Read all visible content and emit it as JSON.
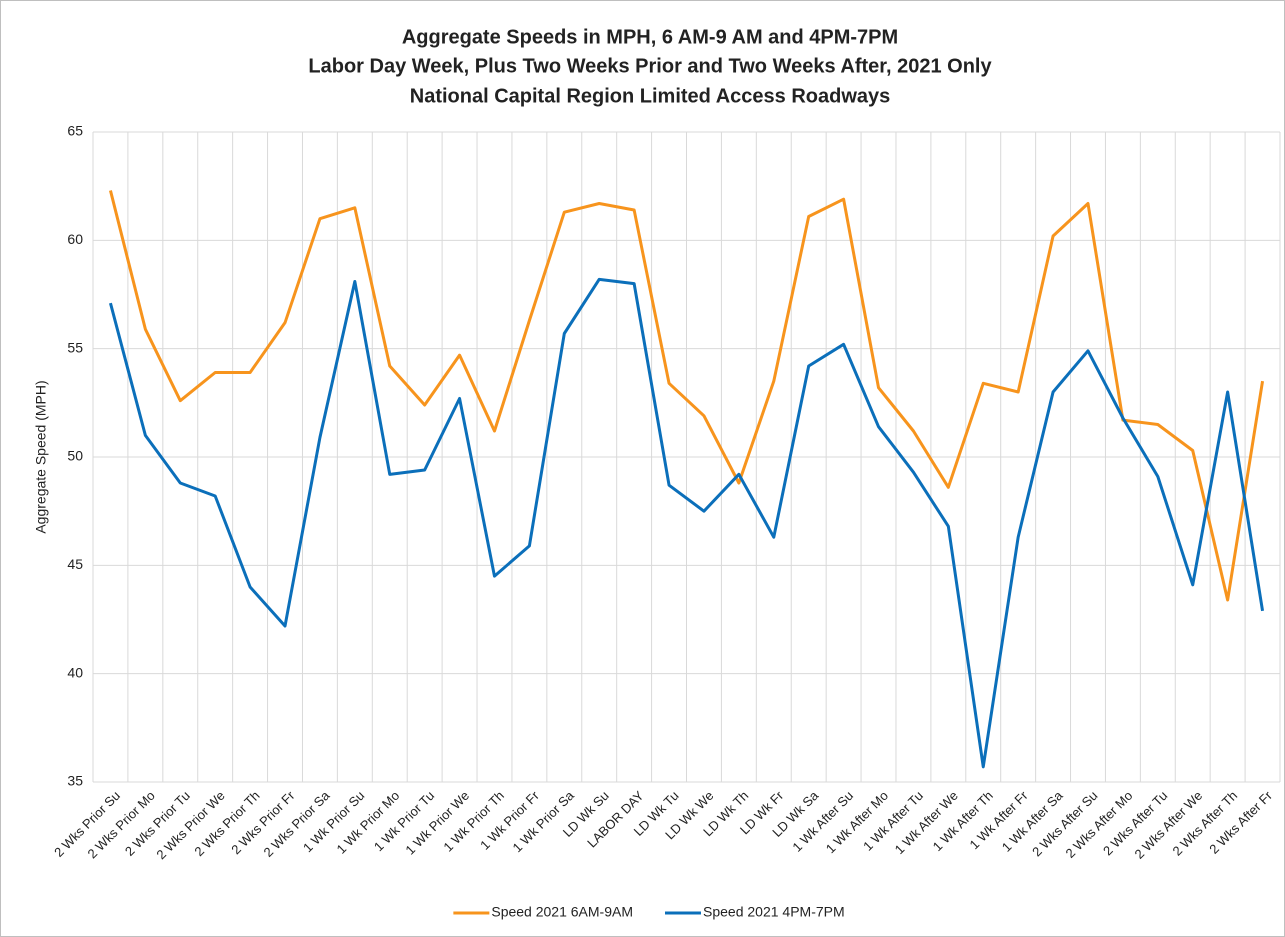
{
  "chart_data": {
    "type": "line",
    "title": [
      "Aggregate Speeds in MPH, 6 AM-9 AM and 4PM-7PM",
      "Labor Day Week, Plus Two Weeks Prior and Two Weeks After, 2021 Only",
      "National Capital Region Limited Access Roadways"
    ],
    "y_label": "Aggregate Speed (MPH)",
    "categories": [
      "2 Wks Prior Su",
      "2 Wks Prior Mo",
      "2 Wks Prior Tu",
      "2 Wks Prior We",
      "2 Wks Prior Th",
      "2 Wks Prior Fr",
      "2 Wks Prior Sa",
      "1 Wk Prior Su",
      "1 Wk Prior Mo",
      "1 Wk Prior Tu",
      "1 Wk Prior We",
      "1 Wk Prior Th",
      "1 Wk Prior Fr",
      "1 Wk Prior Sa",
      "LD Wk Su",
      "LABOR DAY",
      "LD Wk Tu",
      "LD Wk We",
      "LD Wk Th",
      "LD Wk Fr",
      "LD Wk Sa",
      "1 Wk After Su",
      "1 Wk After Mo",
      "1 Wk After Tu",
      "1 Wk After We",
      "1 Wk After Th",
      "1 Wk After Fr",
      "1 Wk After Sa",
      "2 Wks After Su",
      "2 Wks After Mo",
      "2 Wks After Tu",
      "2 Wks After We",
      "2 Wks After Th",
      "2 Wks After Fr"
    ],
    "series": [
      {
        "name": "Speed 2021 6AM-9AM",
        "color": "#f7941d",
        "values": [
          62.3,
          55.9,
          52.6,
          53.9,
          53.9,
          56.2,
          61.0,
          61.5,
          54.2,
          52.4,
          54.7,
          51.2,
          56.3,
          61.3,
          61.7,
          61.4,
          53.4,
          51.9,
          48.8,
          53.5,
          61.1,
          61.9,
          53.2,
          51.2,
          48.6,
          53.4,
          53.0,
          60.2,
          61.7,
          51.7,
          51.5,
          50.3,
          43.4,
          53.5
        ]
      },
      {
        "name": "Speed 2021 4PM-7PM",
        "color": "#0b6fba",
        "values": [
          57.1,
          51.0,
          48.8,
          48.2,
          44.0,
          42.2,
          50.9,
          58.1,
          49.2,
          49.4,
          52.7,
          44.5,
          45.9,
          55.7,
          58.2,
          58.0,
          48.7,
          47.5,
          49.2,
          46.3,
          54.2,
          55.2,
          51.4,
          49.3,
          46.8,
          35.7,
          46.3,
          53.0,
          54.9,
          51.8,
          49.1,
          44.1,
          53.0,
          42.9
        ]
      }
    ],
    "ylim": [
      35,
      65
    ],
    "yticks": [
      35,
      40,
      45,
      50,
      55,
      60,
      65
    ],
    "grid": true,
    "legend": "bottom"
  }
}
